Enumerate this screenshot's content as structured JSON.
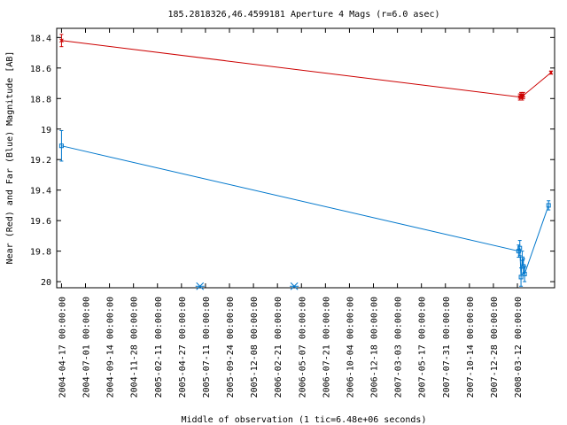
{
  "chart_data": {
    "type": "line",
    "title": "185.2818326,46.4599181   Aperture 4 Mags (r=6.0 asec)",
    "xlabel": "Middle of observation (1 tic=6.48e+06 seconds)",
    "ylabel": "Near (Red) and Far (Blue) Magnitude [AB]",
    "ylim": [
      18.34,
      20.04
    ],
    "y_inverted": true,
    "yticks": [
      18.4,
      18.6,
      18.8,
      19,
      19.2,
      19.4,
      19.6,
      19.8,
      20
    ],
    "ytick_labels": [
      "18.4",
      "18.6",
      "18.8",
      "19",
      "19.2",
      "19.4",
      "19.6",
      "19.8",
      "20"
    ],
    "xtick_labels": [
      "2004-04-17 00:00:00",
      "2004-07-01 00:00:00",
      "2004-09-14 00:00:00",
      "2004-11-28 00:00:00",
      "2005-02-11 00:00:00",
      "2005-04-27 00:00:00",
      "2005-07-11 00:00:00",
      "2005-09-24 00:00:00",
      "2005-12-08 00:00:00",
      "2006-02-21 00:00:00",
      "2006-05-07 00:00:00",
      "2006-07-21 00:00:00",
      "2006-10-04 00:00:00",
      "2006-12-18 00:00:00",
      "2007-03-03 00:00:00",
      "2007-05-17 00:00:00",
      "2007-07-31 00:00:00",
      "2007-10-14 00:00:00",
      "2007-12-28 00:00:00",
      "2008-03-12 00:00:00"
    ],
    "xlim": [
      -0.2,
      20.55
    ],
    "grid": false,
    "series": [
      {
        "color": "#cc0000",
        "marker": "x",
        "x": [
          0,
          19.1,
          19.15,
          19.2,
          19.25,
          20.4
        ],
        "y": [
          18.42,
          18.79,
          18.78,
          18.79,
          18.78,
          18.63
        ],
        "err": [
          0.04,
          0.02,
          0.02,
          0.02,
          0.02,
          0.01
        ]
      },
      {
        "color": "#0077cc",
        "marker": "square",
        "x": [
          0,
          19.05,
          19.1,
          19.15,
          19.2,
          19.25,
          19.3,
          20.3
        ],
        "y": [
          19.11,
          19.8,
          19.78,
          19.97,
          19.85,
          19.9,
          19.95,
          19.5
        ],
        "err": [
          0.1,
          0.04,
          0.05,
          0.06,
          0.05,
          0.05,
          0.05,
          0.03
        ]
      }
    ],
    "upper_limits": {
      "color": "#0077cc",
      "marker": "asterisk",
      "x": [
        5.77,
        9.7
      ],
      "y": [
        20.03,
        20.03
      ]
    }
  }
}
